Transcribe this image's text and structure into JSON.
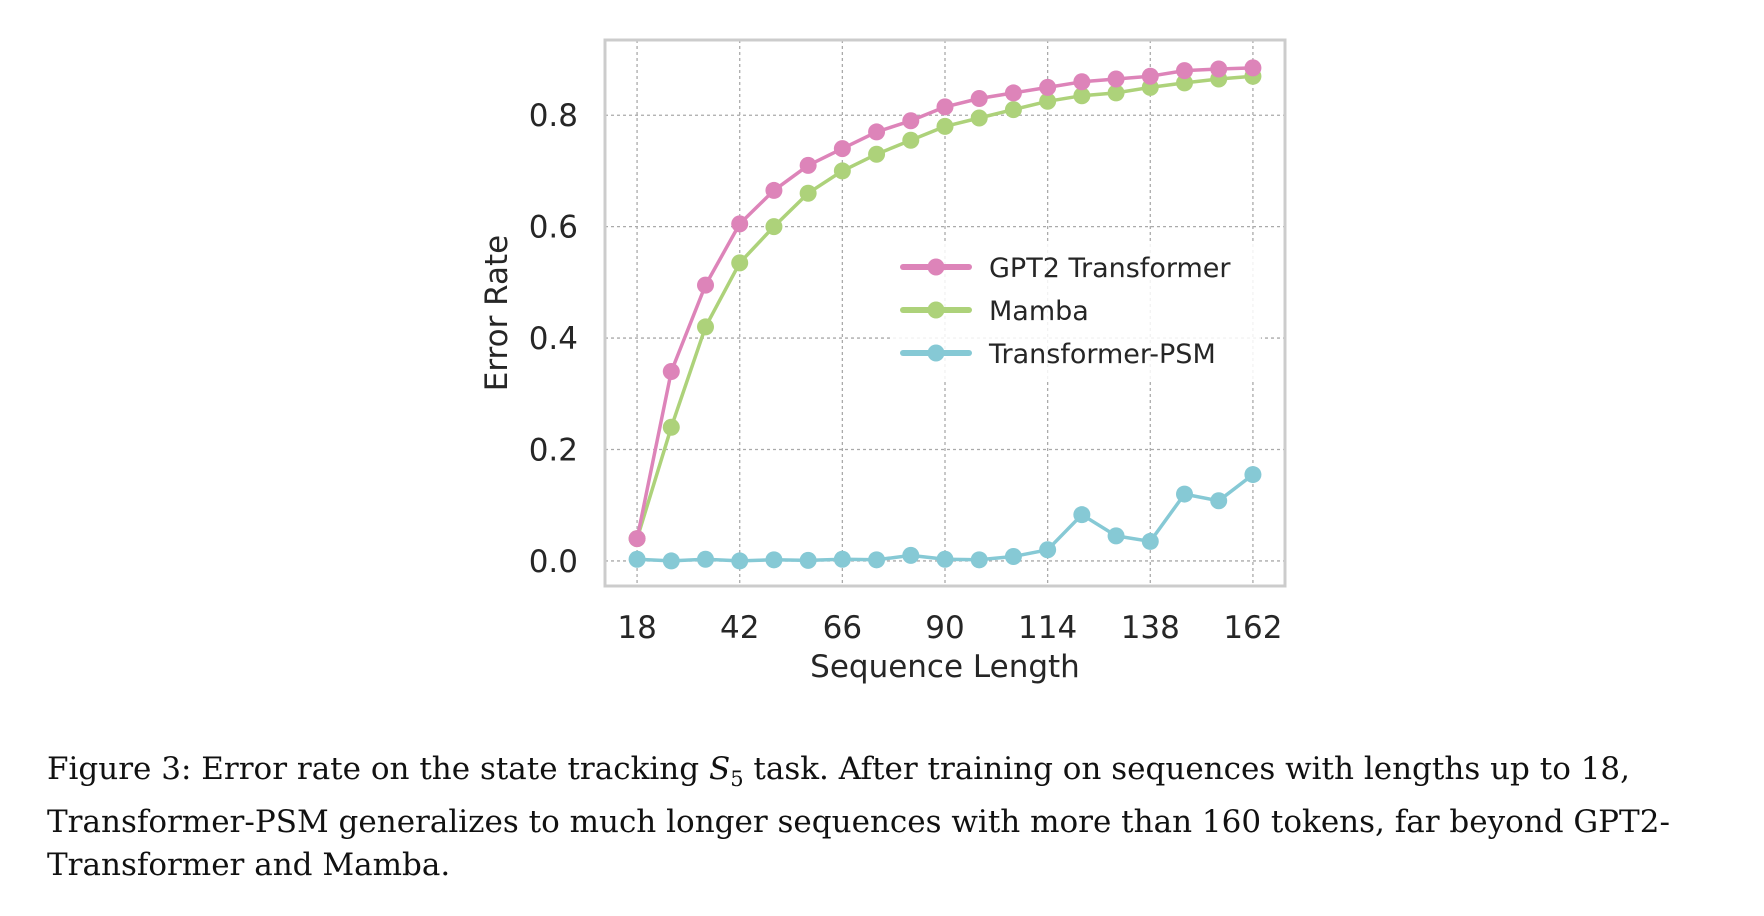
{
  "chart_data": {
    "type": "line",
    "title": "",
    "xlabel": "Sequence Length",
    "ylabel": "Error Rate",
    "x": [
      18,
      26,
      34,
      42,
      50,
      58,
      66,
      74,
      82,
      90,
      98,
      106,
      114,
      122,
      130,
      138,
      146,
      154,
      162
    ],
    "xticks": [
      18,
      42,
      66,
      90,
      114,
      138,
      162
    ],
    "yticks": [
      0.0,
      0.2,
      0.4,
      0.6,
      0.8
    ],
    "ytick_labels": [
      "0.0",
      "0.2",
      "0.4",
      "0.6",
      "0.8"
    ],
    "xlim": [
      10.5,
      169.5
    ],
    "ylim": [
      -0.045,
      0.935
    ],
    "grid": true,
    "legend_position": "center-right",
    "series": [
      {
        "name": "GPT2 Transformer",
        "color": "#dd84b9",
        "values": [
          0.04,
          0.34,
          0.495,
          0.605,
          0.665,
          0.71,
          0.74,
          0.77,
          0.79,
          0.815,
          0.83,
          0.84,
          0.85,
          0.86,
          0.865,
          0.87,
          0.88,
          0.883,
          0.885
        ]
      },
      {
        "name": "Mamba",
        "color": "#add27a",
        "values": [
          0.04,
          0.24,
          0.42,
          0.535,
          0.6,
          0.66,
          0.7,
          0.73,
          0.755,
          0.78,
          0.795,
          0.81,
          0.825,
          0.835,
          0.84,
          0.85,
          0.858,
          0.865,
          0.87
        ]
      },
      {
        "name": "Transformer-PSM",
        "color": "#86c9d5",
        "values": [
          0.003,
          0.0,
          0.003,
          0.0,
          0.002,
          0.001,
          0.003,
          0.002,
          0.01,
          0.003,
          0.002,
          0.008,
          0.02,
          0.083,
          0.045,
          0.035,
          0.12,
          0.108,
          0.155
        ]
      }
    ]
  },
  "caption": {
    "line1_a": "Figure 3: Error rate on the state tracking ",
    "line1_sym": "S",
    "line1_sub": "5",
    "line1_b": " task. After training on sequences with lengths up to 18,",
    "line2": "Transformer-PSM generalizes to much longer sequences with more than 160 tokens, far beyond GPT2-",
    "line3": "Transformer and Mamba."
  }
}
